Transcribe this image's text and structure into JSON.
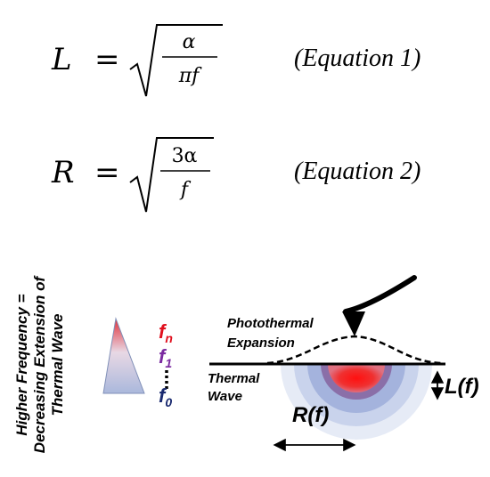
{
  "equations": [
    {
      "lhs": "L",
      "operator": "=",
      "numerator": "α",
      "denominator": "πf",
      "label": "(Equation 1)"
    },
    {
      "lhs": "R",
      "operator": "=",
      "numerator": "3α",
      "denominator": "f",
      "label": "(Equation 2)"
    }
  ],
  "diagram": {
    "side_label": [
      "Higher Frequency =",
      "Decreasing Extension of",
      "Thermal Wave"
    ],
    "frequencies": [
      {
        "base": "f",
        "sub": "n"
      },
      {
        "base": "f",
        "sub": "1"
      },
      {
        "base": "f",
        "sub": "0"
      }
    ],
    "photothermal": [
      "Photothermal",
      "Expansion"
    ],
    "thermal_wave": [
      "Thermal",
      "Wave"
    ],
    "depth": "L(f)",
    "radius": "R(f)"
  }
}
